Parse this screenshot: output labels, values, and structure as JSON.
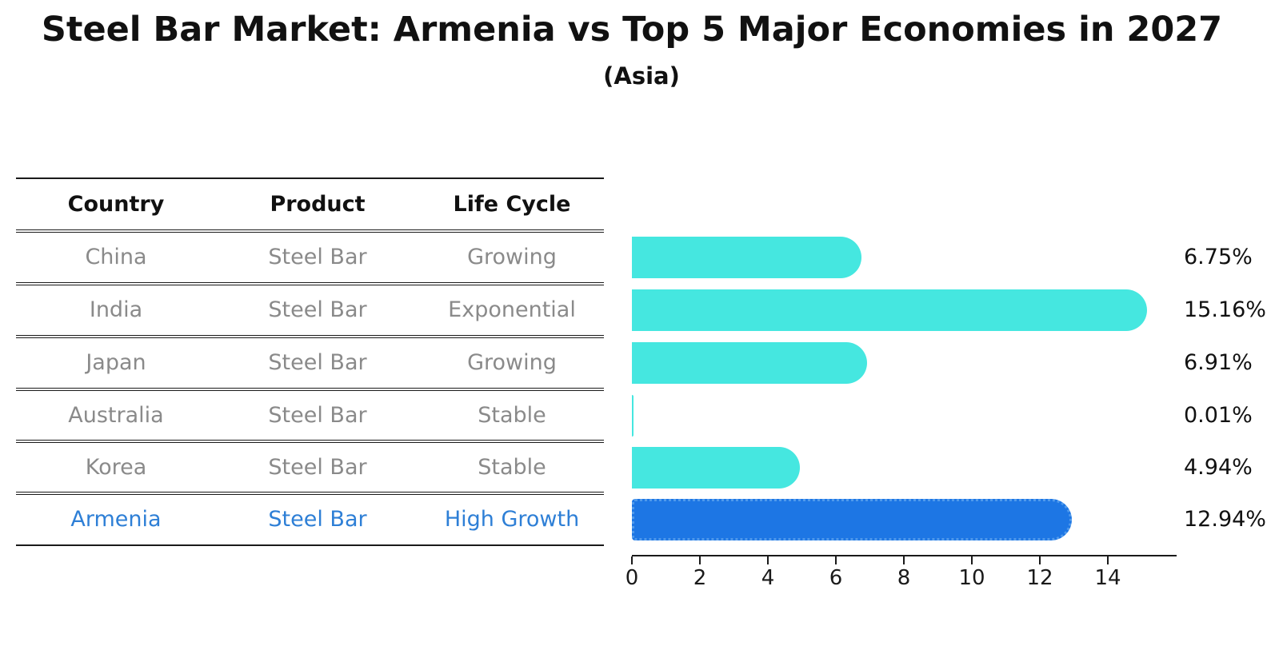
{
  "title": "Steel Bar Market: Armenia vs Top 5 Major Economies in 2027",
  "subtitle": "(Asia)",
  "table": {
    "headers": [
      "Country",
      "Product",
      "Life Cycle"
    ],
    "rows": [
      {
        "country": "China",
        "product": "Steel Bar",
        "life_cycle": "Growing"
      },
      {
        "country": "India",
        "product": "Steel Bar",
        "life_cycle": "Exponential"
      },
      {
        "country": "Japan",
        "product": "Steel Bar",
        "life_cycle": "Growing"
      },
      {
        "country": "Australia",
        "product": "Steel Bar",
        "life_cycle": "Stable"
      },
      {
        "country": "Korea",
        "product": "Steel Bar",
        "life_cycle": "Stable"
      },
      {
        "country": "Armenia",
        "product": "Steel Bar",
        "life_cycle": "High Growth"
      }
    ],
    "highlighted_row": "Armenia"
  },
  "chart_data": {
    "type": "bar",
    "orientation": "horizontal",
    "title": "Steel Bar Market: Armenia vs Top 5 Major Economies in 2027",
    "subtitle": "(Asia)",
    "categories": [
      "China",
      "India",
      "Japan",
      "Australia",
      "Korea",
      "Armenia"
    ],
    "values": [
      6.75,
      15.16,
      6.91,
      0.01,
      4.94,
      12.94
    ],
    "value_labels": [
      "6.75%",
      "15.16%",
      "6.91%",
      "0.01%",
      "4.94%",
      "12.94%"
    ],
    "x_ticks": [
      0,
      2,
      4,
      6,
      8,
      10,
      12,
      14
    ],
    "xlim": [
      0,
      16
    ],
    "xlabel": "",
    "ylabel": "",
    "grid": false,
    "legend": false,
    "bar_color": "#45e7e0",
    "highlight_color": "#1d76e4",
    "highlight_border_color": "#509aec",
    "highlight_index": 5
  },
  "colors": {
    "row_text": "#8a8a8a",
    "highlight_text": "#2e7fd6",
    "title_text": "#111111",
    "line": "#1a1a1a"
  }
}
